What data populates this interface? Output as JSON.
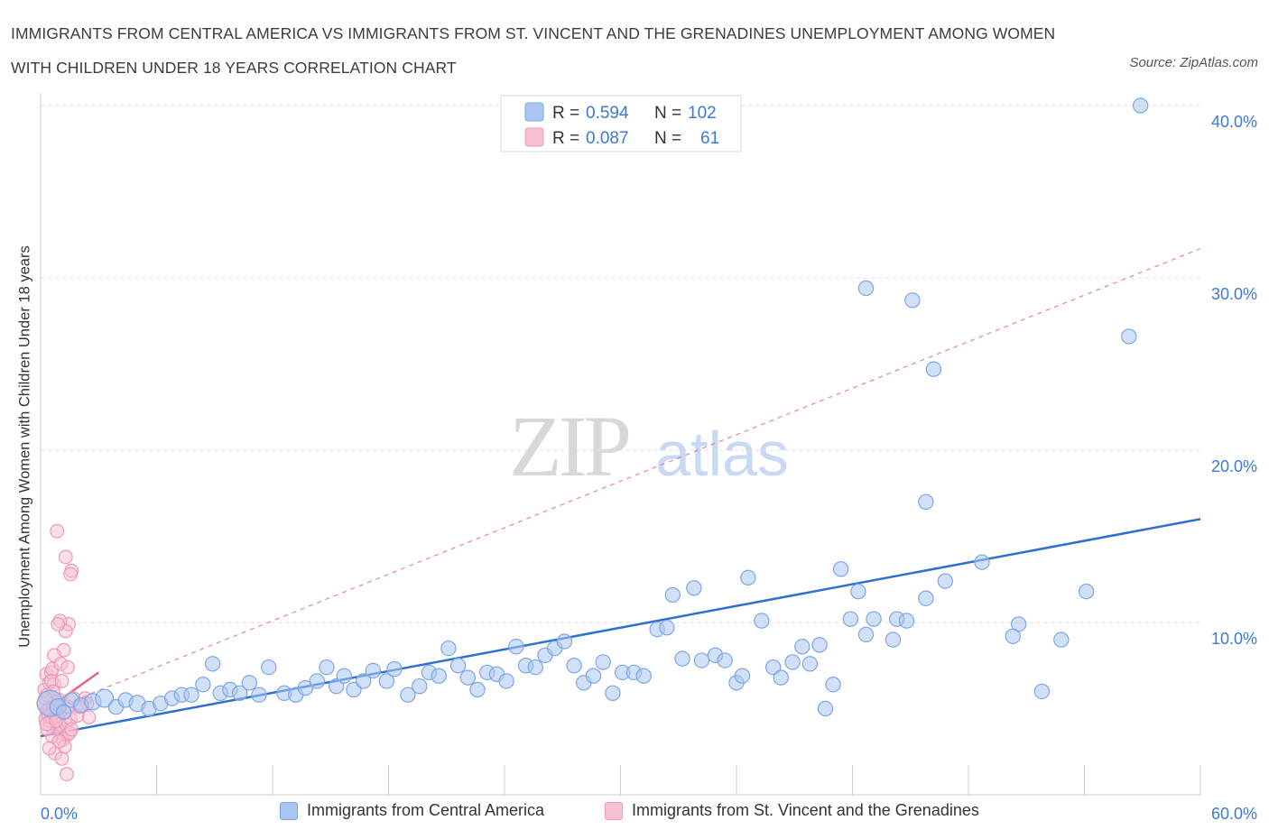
{
  "title": "IMMIGRANTS FROM CENTRAL AMERICA VS IMMIGRANTS FROM ST. VINCENT AND THE GRENADINES UNEMPLOYMENT AMONG WOMEN WITH CHILDREN UNDER 18 YEARS CORRELATION CHART",
  "source": "Source: ZipAtlas.com",
  "watermark": {
    "zip": "ZIP",
    "atlas": "atlas"
  },
  "colors": {
    "blue": "#2e6fd0",
    "blue_fill": "#a9c6f1",
    "blue_stroke": "#7ea6e6",
    "pink": "#e8608e",
    "pink_fill": "#f6c2d2",
    "pink_stroke": "#ee97b5",
    "axis_label": "#3c78d8",
    "grid": "#dcdcdc"
  },
  "legend": {
    "series": [
      {
        "r_label": "R = ",
        "r_value": "0.594",
        "n_label": "N = ",
        "n_value": "102",
        "color": "blue"
      },
      {
        "r_label": "R = ",
        "r_value": "0.087",
        "n_label": "N = ",
        "n_value": "61",
        "color": "pink"
      }
    ]
  },
  "chart_data": {
    "type": "scatter",
    "title": "IMMIGRANTS FROM CENTRAL AMERICA VS IMMIGRANTS FROM ST. VINCENT AND THE GRENADINES UNEMPLOYMENT AMONG WOMEN WITH CHILDREN UNDER 18 YEARS CORRELATION CHART",
    "xlabel": "",
    "ylabel": "Unemployment Among Women with Children Under 18 years",
    "xlim": [
      0,
      60
    ],
    "ylim": [
      0,
      40
    ],
    "x_tick_labels": [
      {
        "value": 0,
        "label": "0.0%",
        "anchor": "start"
      },
      {
        "value": 60,
        "label": "60.0%",
        "anchor": "end"
      }
    ],
    "y_tick_labels": [
      {
        "value": 10,
        "label": "10.0%"
      },
      {
        "value": 20,
        "label": "20.0%"
      },
      {
        "value": 30,
        "label": "30.0%"
      },
      {
        "value": 40,
        "label": "40.0%"
      }
    ],
    "x_minor_ticks": [
      0,
      6,
      12,
      18,
      24,
      30,
      36,
      42,
      48,
      54,
      60
    ],
    "series": [
      {
        "name": "Immigrants from Central America",
        "color": "blue",
        "trend": {
          "x": [
            0,
            60
          ],
          "y": [
            3.4,
            16.0
          ],
          "style": "solid"
        },
        "points": [
          [
            0.5,
            5.3,
            1.6
          ],
          [
            0.9,
            5.1,
            1.0
          ],
          [
            1.2,
            4.8,
            0.9
          ],
          [
            1.6,
            5.5,
            0.9
          ],
          [
            2.1,
            5.2,
            0.9
          ],
          [
            2.7,
            5.4,
            1.0
          ],
          [
            3.3,
            5.6,
            1.1
          ],
          [
            3.9,
            5.1,
            0.9
          ],
          [
            4.4,
            5.5,
            0.9
          ],
          [
            5.0,
            5.3,
            1.0
          ],
          [
            5.6,
            5.0,
            0.9
          ],
          [
            6.2,
            5.3,
            0.9
          ],
          [
            6.8,
            5.6,
            0.9
          ],
          [
            7.3,
            5.8,
            0.9
          ],
          [
            7.8,
            5.8,
            0.9
          ],
          [
            8.4,
            6.4,
            0.9
          ],
          [
            8.9,
            7.6,
            0.9
          ],
          [
            9.3,
            5.9,
            0.9
          ],
          [
            9.8,
            6.1,
            0.9
          ],
          [
            10.3,
            5.9,
            0.9
          ],
          [
            10.8,
            6.5,
            0.9
          ],
          [
            11.3,
            5.8,
            0.9
          ],
          [
            11.8,
            7.4,
            0.9
          ],
          [
            12.6,
            5.9,
            0.9
          ],
          [
            13.2,
            5.8,
            0.9
          ],
          [
            13.7,
            6.2,
            0.9
          ],
          [
            14.3,
            6.6,
            0.9
          ],
          [
            14.8,
            7.4,
            0.9
          ],
          [
            15.3,
            6.3,
            0.9
          ],
          [
            15.7,
            6.9,
            0.9
          ],
          [
            16.2,
            6.1,
            0.9
          ],
          [
            16.7,
            6.6,
            0.9
          ],
          [
            17.2,
            7.2,
            0.9
          ],
          [
            17.9,
            6.6,
            0.9
          ],
          [
            18.3,
            7.3,
            0.9
          ],
          [
            19.0,
            5.8,
            0.9
          ],
          [
            19.6,
            6.3,
            0.9
          ],
          [
            20.1,
            7.1,
            0.9
          ],
          [
            20.6,
            6.9,
            0.9
          ],
          [
            21.1,
            8.5,
            0.9
          ],
          [
            21.6,
            7.5,
            0.9
          ],
          [
            22.1,
            6.8,
            0.9
          ],
          [
            22.6,
            6.1,
            0.9
          ],
          [
            23.1,
            7.1,
            0.9
          ],
          [
            23.6,
            7.0,
            0.9
          ],
          [
            24.1,
            6.6,
            0.9
          ],
          [
            24.6,
            8.6,
            0.9
          ],
          [
            25.1,
            7.5,
            0.9
          ],
          [
            25.6,
            7.4,
            0.9
          ],
          [
            26.1,
            8.1,
            0.9
          ],
          [
            26.6,
            8.5,
            0.9
          ],
          [
            27.1,
            8.9,
            0.9
          ],
          [
            27.6,
            7.5,
            0.9
          ],
          [
            28.1,
            6.5,
            0.9
          ],
          [
            28.6,
            6.9,
            0.9
          ],
          [
            29.1,
            7.7,
            0.9
          ],
          [
            29.6,
            5.9,
            0.9
          ],
          [
            30.1,
            7.1,
            0.9
          ],
          [
            30.7,
            7.1,
            0.9
          ],
          [
            31.2,
            6.9,
            0.9
          ],
          [
            31.9,
            9.6,
            0.9
          ],
          [
            32.4,
            9.7,
            0.9
          ],
          [
            32.7,
            11.6,
            0.9
          ],
          [
            33.2,
            7.9,
            0.9
          ],
          [
            33.8,
            12.0,
            0.9
          ],
          [
            34.2,
            7.8,
            0.9
          ],
          [
            34.9,
            8.1,
            0.9
          ],
          [
            35.4,
            7.8,
            0.9
          ],
          [
            36.0,
            6.5,
            0.9
          ],
          [
            36.3,
            6.9,
            0.9
          ],
          [
            36.6,
            12.6,
            0.9
          ],
          [
            37.3,
            10.1,
            0.9
          ],
          [
            37.9,
            7.4,
            0.9
          ],
          [
            38.3,
            6.8,
            0.9
          ],
          [
            38.9,
            7.7,
            0.9
          ],
          [
            39.4,
            8.6,
            0.9
          ],
          [
            39.8,
            7.6,
            0.9
          ],
          [
            40.3,
            8.7,
            0.9
          ],
          [
            40.6,
            5.0,
            0.9
          ],
          [
            41.0,
            6.4,
            0.9
          ],
          [
            41.4,
            13.1,
            0.9
          ],
          [
            41.9,
            10.2,
            0.9
          ],
          [
            42.3,
            11.8,
            0.9
          ],
          [
            42.7,
            9.3,
            0.9
          ],
          [
            43.1,
            10.2,
            0.9
          ],
          [
            42.7,
            29.4,
            0.9
          ],
          [
            44.1,
            9.0,
            0.9
          ],
          [
            44.3,
            10.2,
            0.9
          ],
          [
            44.8,
            10.1,
            0.9
          ],
          [
            45.1,
            28.7,
            0.9
          ],
          [
            45.8,
            11.4,
            0.9
          ],
          [
            46.2,
            24.7,
            0.9
          ],
          [
            45.8,
            17.0,
            0.9
          ],
          [
            46.8,
            12.4,
            0.9
          ],
          [
            48.7,
            13.5,
            0.9
          ],
          [
            50.6,
            9.9,
            0.9
          ],
          [
            50.3,
            9.2,
            0.9
          ],
          [
            51.8,
            6.0,
            0.9
          ],
          [
            52.8,
            9.0,
            0.9
          ],
          [
            54.1,
            11.8,
            0.9
          ],
          [
            56.3,
            26.6,
            0.9
          ],
          [
            56.9,
            40.0,
            0.9
          ]
        ]
      },
      {
        "name": "Immigrants from St. Vincent and the Grenadines",
        "color": "pink",
        "trend": {
          "x": [
            0,
            3.0
          ],
          "y": [
            4.7,
            7.1
          ],
          "style": "solid",
          "dashed_extension": {
            "x": [
              0,
              60
            ],
            "y": [
              4.7,
              31.7
            ]
          }
        },
        "points": [
          [
            0.15,
            5.3,
            0.7
          ],
          [
            0.2,
            6.1,
            0.7
          ],
          [
            0.25,
            4.4,
            0.7
          ],
          [
            0.3,
            7.0,
            0.7
          ],
          [
            0.35,
            5.8,
            0.7
          ],
          [
            0.4,
            4.6,
            0.7
          ],
          [
            0.45,
            6.5,
            0.7
          ],
          [
            0.5,
            4.0,
            0.7
          ],
          [
            0.55,
            7.1,
            0.7
          ],
          [
            0.6,
            3.4,
            0.7
          ],
          [
            0.65,
            5.1,
            0.7
          ],
          [
            0.7,
            6.4,
            0.7
          ],
          [
            0.75,
            2.4,
            0.7
          ],
          [
            0.8,
            4.2,
            0.7
          ],
          [
            0.85,
            4.6,
            0.7
          ],
          [
            0.9,
            3.8,
            0.7
          ],
          [
            0.95,
            5.5,
            0.7
          ],
          [
            1.0,
            4.1,
            0.7
          ],
          [
            1.05,
            3.6,
            0.7
          ],
          [
            1.1,
            2.1,
            0.7
          ],
          [
            1.15,
            3.2,
            0.7
          ],
          [
            1.2,
            4.8,
            0.7
          ],
          [
            1.25,
            2.8,
            0.7
          ],
          [
            1.3,
            4.1,
            0.7
          ],
          [
            1.35,
            1.2,
            0.7
          ],
          [
            1.4,
            3.5,
            0.7
          ],
          [
            1.45,
            5.1,
            0.7
          ],
          [
            1.5,
            3.6,
            0.7
          ],
          [
            1.55,
            4.4,
            0.7
          ],
          [
            1.6,
            3.8,
            0.7
          ],
          [
            0.85,
            15.3,
            0.7
          ],
          [
            1.3,
            13.8,
            0.7
          ],
          [
            1.6,
            13.0,
            0.7
          ],
          [
            1.55,
            12.8,
            0.7
          ],
          [
            1.45,
            9.9,
            0.7
          ],
          [
            1.3,
            9.5,
            0.7
          ],
          [
            1.2,
            8.4,
            0.7
          ],
          [
            1.0,
            10.1,
            0.7
          ],
          [
            0.9,
            9.9,
            0.7
          ],
          [
            0.7,
            8.1,
            0.7
          ],
          [
            0.6,
            7.3,
            0.7
          ],
          [
            0.55,
            6.6,
            0.7
          ],
          [
            0.65,
            6.0,
            0.7
          ],
          [
            1.05,
            7.6,
            0.7
          ],
          [
            1.4,
            7.4,
            0.7
          ],
          [
            0.75,
            5.4,
            0.7
          ],
          [
            0.4,
            5.0,
            0.7
          ],
          [
            0.5,
            4.3,
            0.7
          ],
          [
            0.35,
            3.8,
            0.7
          ],
          [
            0.25,
            5.6,
            0.7
          ],
          [
            2.3,
            5.6,
            0.7
          ],
          [
            2.5,
            4.5,
            0.7
          ],
          [
            2.4,
            5.3,
            0.7
          ],
          [
            1.9,
            4.6,
            0.7
          ],
          [
            1.7,
            5.6,
            0.7
          ],
          [
            1.1,
            6.6,
            0.7
          ],
          [
            0.95,
            3.1,
            0.7
          ],
          [
            0.45,
            2.7,
            0.7
          ],
          [
            0.3,
            4.1,
            0.7
          ],
          [
            0.8,
            4.3,
            0.7
          ],
          [
            2.0,
            5.1,
            0.7
          ]
        ]
      }
    ]
  }
}
